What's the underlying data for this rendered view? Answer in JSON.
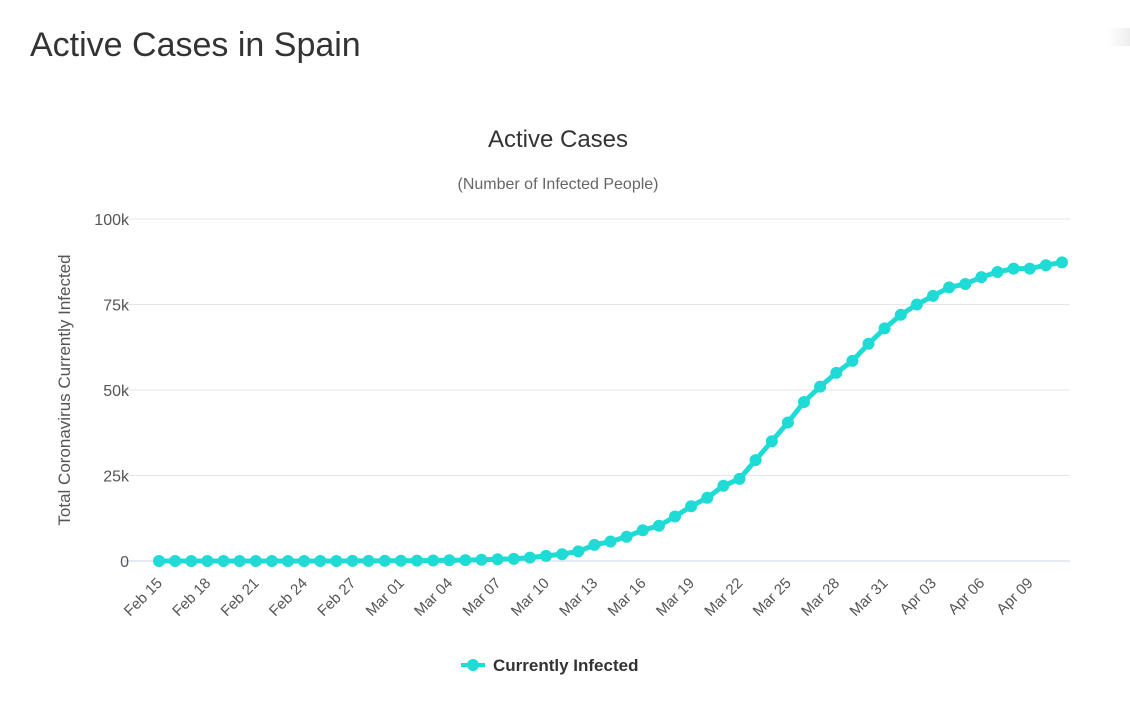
{
  "page": {
    "title": "Active Cases in Spain"
  },
  "chart_data": {
    "type": "line",
    "title": "Active Cases",
    "subtitle": "(Number of Infected People)",
    "ylabel": "Total Coronavirus Currently Infected",
    "xlabel": "",
    "ylim": [
      0,
      100000
    ],
    "yticks": [
      0,
      25000,
      50000,
      75000,
      100000
    ],
    "ytick_labels": [
      "0",
      "25k",
      "50k",
      "75k",
      "100k"
    ],
    "x": [
      "Feb 15",
      "Feb 16",
      "Feb 17",
      "Feb 18",
      "Feb 19",
      "Feb 20",
      "Feb 21",
      "Feb 22",
      "Feb 23",
      "Feb 24",
      "Feb 25",
      "Feb 26",
      "Feb 27",
      "Feb 28",
      "Feb 29",
      "Mar 01",
      "Mar 02",
      "Mar 03",
      "Mar 04",
      "Mar 05",
      "Mar 06",
      "Mar 07",
      "Mar 08",
      "Mar 09",
      "Mar 10",
      "Mar 11",
      "Mar 12",
      "Mar 13",
      "Mar 14",
      "Mar 15",
      "Mar 16",
      "Mar 17",
      "Mar 18",
      "Mar 19",
      "Mar 20",
      "Mar 21",
      "Mar 22",
      "Mar 23",
      "Mar 24",
      "Mar 25",
      "Mar 26",
      "Mar 27",
      "Mar 28",
      "Mar 29",
      "Mar 30",
      "Mar 31",
      "Apr 01",
      "Apr 02",
      "Apr 03",
      "Apr 04",
      "Apr 05",
      "Apr 06",
      "Apr 07",
      "Apr 08",
      "Apr 09",
      "Apr 10",
      "Apr 11"
    ],
    "x_tick_labels": [
      "Feb 15",
      "Feb 18",
      "Feb 21",
      "Feb 24",
      "Feb 27",
      "Mar 01",
      "Mar 04",
      "Mar 07",
      "Mar 10",
      "Mar 13",
      "Mar 16",
      "Mar 19",
      "Mar 22",
      "Mar 25",
      "Mar 28",
      "Mar 31",
      "Apr 03",
      "Apr 06",
      "Apr 09"
    ],
    "series": [
      {
        "name": "Currently Infected",
        "color": "#1fdbd5",
        "values": [
          2,
          2,
          2,
          2,
          2,
          2,
          2,
          2,
          2,
          2,
          4,
          10,
          20,
          30,
          50,
          80,
          110,
          160,
          200,
          250,
          350,
          500,
          600,
          1000,
          1500,
          2000,
          2800,
          4700,
          5700,
          7100,
          9000,
          10300,
          13000,
          16000,
          18500,
          22000,
          24000,
          29500,
          35000,
          40500,
          46500,
          51000,
          55000,
          58500,
          63500,
          68000,
          72000,
          75000,
          77500,
          80000,
          81000,
          83000,
          84500,
          85500,
          85500,
          86500,
          87300
        ]
      }
    ],
    "legend": {
      "position": "bottom-center",
      "label": "Currently Infected"
    },
    "grid": true
  }
}
